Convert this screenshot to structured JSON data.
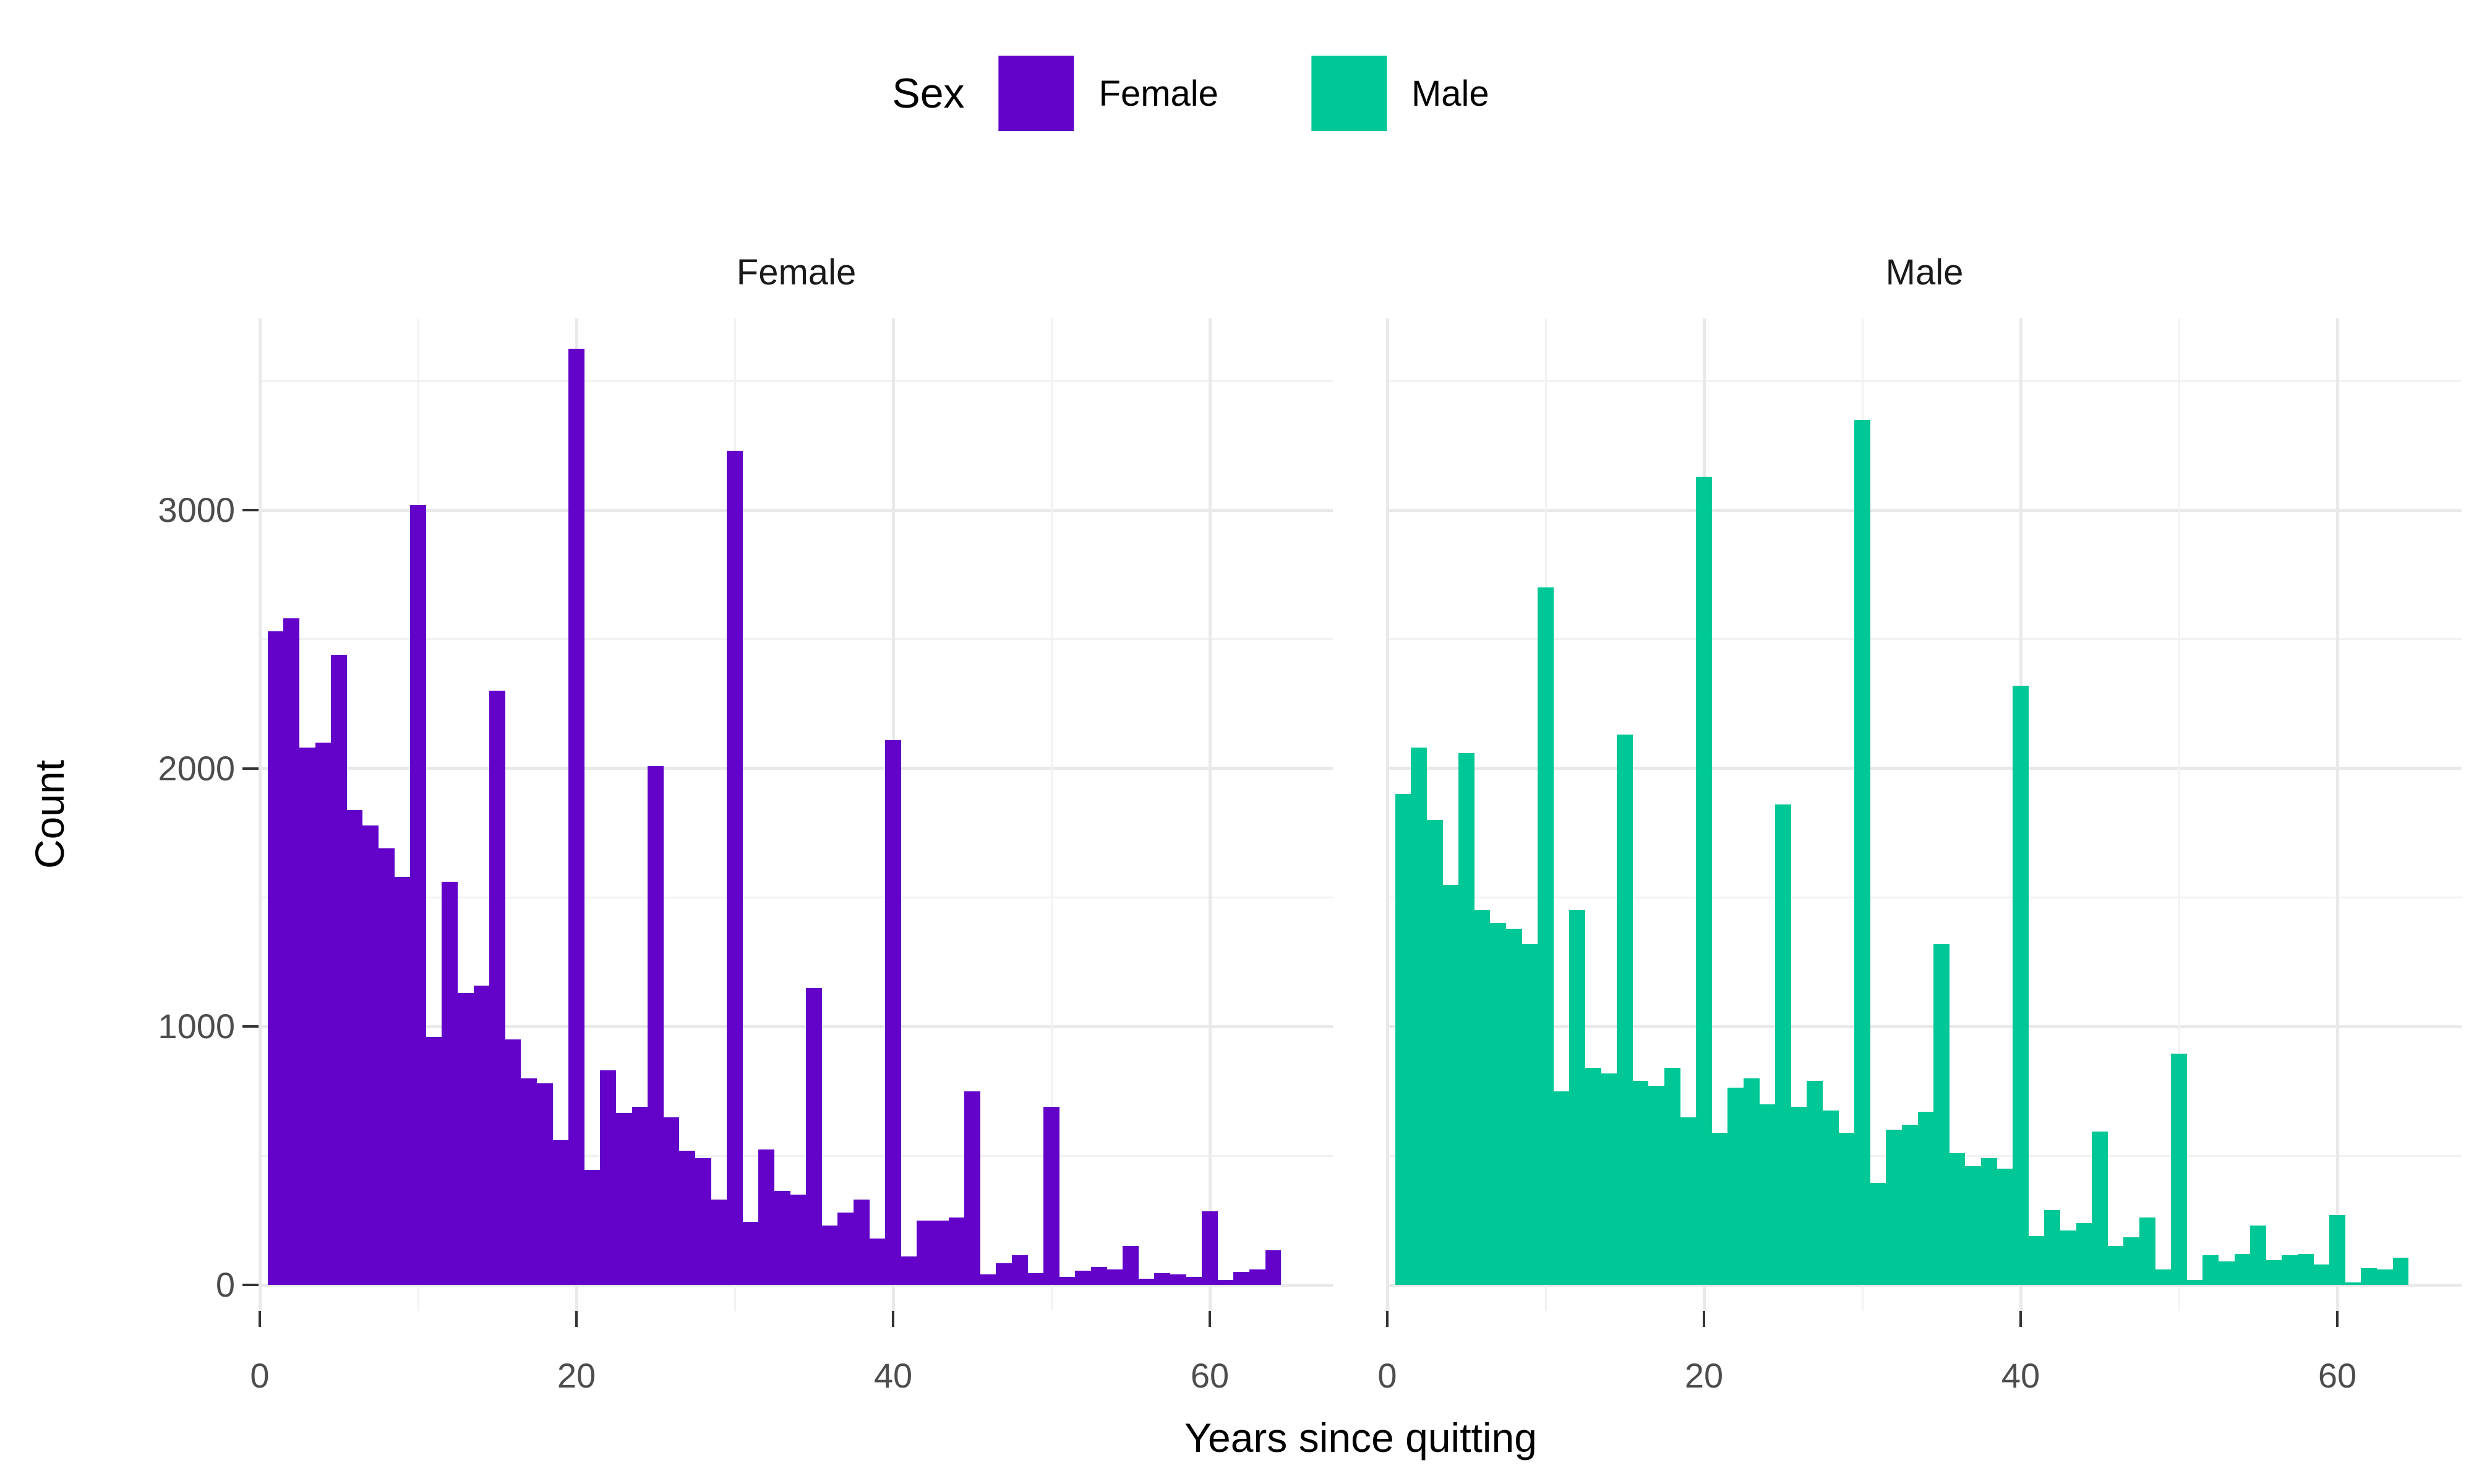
{
  "legend": {
    "title": "Sex",
    "items": [
      {
        "label": "Female",
        "color": "#6302c8"
      },
      {
        "label": "Male",
        "color": "#00c796"
      }
    ]
  },
  "axes": {
    "x_title": "Years since quitting",
    "y_title": "Count",
    "x_tick_labels": [
      "0",
      "20",
      "40",
      "60"
    ],
    "y_tick_labels": [
      "0",
      "1000",
      "2000",
      "3000"
    ]
  },
  "chart_data": {
    "type": "bar",
    "subtype": "faceted_histogram",
    "title": "",
    "xlabel": "Years since quitting",
    "ylabel": "Count",
    "facets": [
      "Female",
      "Male"
    ],
    "bin_width": 1,
    "bin_centers": [
      1,
      2,
      3,
      4,
      5,
      6,
      7,
      8,
      9,
      10,
      11,
      12,
      13,
      14,
      15,
      16,
      17,
      18,
      19,
      20,
      21,
      22,
      23,
      24,
      25,
      26,
      27,
      28,
      29,
      30,
      31,
      32,
      33,
      34,
      35,
      36,
      37,
      38,
      39,
      40,
      41,
      42,
      43,
      44,
      45,
      46,
      47,
      48,
      49,
      50,
      51,
      52,
      53,
      54,
      55,
      56,
      57,
      58,
      59,
      60,
      61,
      62,
      63,
      64
    ],
    "series": [
      {
        "name": "Female",
        "color": "#6302c8",
        "values": [
          2530,
          2580,
          2080,
          2100,
          2440,
          1840,
          1780,
          1690,
          1580,
          3020,
          960,
          1560,
          1130,
          1160,
          2300,
          950,
          800,
          780,
          560,
          3625,
          445,
          830,
          665,
          690,
          2010,
          650,
          520,
          490,
          330,
          3230,
          245,
          525,
          365,
          350,
          1150,
          230,
          280,
          330,
          180,
          2110,
          110,
          250,
          250,
          260,
          750,
          40,
          85,
          115,
          45,
          690,
          30,
          55,
          70,
          60,
          150,
          25,
          45,
          40,
          30,
          285,
          20,
          50,
          60,
          135
        ]
      },
      {
        "name": "Male",
        "color": "#00c796",
        "values": [
          1900,
          2080,
          1800,
          1550,
          2060,
          1450,
          1400,
          1380,
          1320,
          2700,
          750,
          1450,
          840,
          820,
          2130,
          790,
          770,
          840,
          650,
          3130,
          590,
          765,
          800,
          700,
          1860,
          690,
          790,
          675,
          590,
          3350,
          395,
          600,
          620,
          670,
          1320,
          510,
          460,
          490,
          450,
          2320,
          190,
          290,
          210,
          240,
          595,
          150,
          185,
          260,
          60,
          895,
          20,
          115,
          90,
          120,
          230,
          95,
          115,
          120,
          80,
          270,
          10,
          65,
          60,
          105
        ]
      }
    ],
    "x_ticks": [
      0,
      20,
      40,
      60
    ],
    "y_ticks": [
      0,
      1000,
      2000,
      3000
    ],
    "xlim": [
      0,
      67.8
    ],
    "ylim": [
      0,
      3740
    ],
    "grid": {
      "x_major": [
        0,
        20,
        40,
        60
      ],
      "x_minor": [
        10,
        30,
        50
      ],
      "y_major": [
        0,
        1000,
        2000,
        3000
      ],
      "y_minor": [
        500,
        1500,
        2500,
        3500
      ],
      "grid_on": true
    },
    "legend_position": "top-center"
  }
}
